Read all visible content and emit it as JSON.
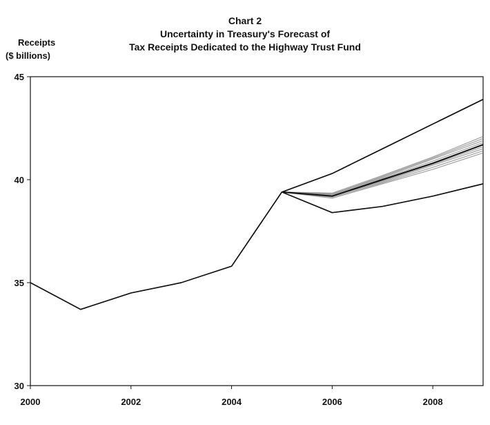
{
  "chart_data": {
    "type": "line",
    "title": "Chart 2",
    "subtitle_lines": [
      "Uncertainty in Treasury's Forecast of",
      "Tax Receipts Dedicated to the Highway Trust Fund"
    ],
    "ylabel_lines": [
      "Receipts",
      "($ billions)"
    ],
    "xlabel": "",
    "xlim": [
      2000,
      2009
    ],
    "ylim": [
      30,
      45
    ],
    "x_ticks": [
      2000,
      2002,
      2004,
      2006,
      2008
    ],
    "y_ticks": [
      30,
      35,
      40,
      45
    ],
    "grid": false,
    "legend": "none",
    "series": [
      {
        "kind": "actual",
        "x": [
          2000,
          2001,
          2002,
          2003,
          2004,
          2005
        ],
        "values": [
          35.0,
          33.7,
          34.5,
          35.0,
          35.8,
          39.4
        ]
      },
      {
        "kind": "forecast-upper",
        "x": [
          2005,
          2006,
          2007,
          2008,
          2009
        ],
        "values": [
          39.4,
          40.3,
          41.5,
          42.7,
          43.9
        ]
      },
      {
        "kind": "forecast-lower",
        "x": [
          2005,
          2006,
          2007,
          2008,
          2009
        ],
        "values": [
          39.4,
          38.4,
          38.7,
          39.2,
          39.8
        ]
      },
      {
        "kind": "forecast-central",
        "x": [
          2005,
          2006,
          2007,
          2008,
          2009
        ],
        "values": [
          39.4,
          39.2,
          40.0,
          40.8,
          41.7
        ]
      },
      {
        "kind": "forecast-path",
        "x": [
          2005,
          2006,
          2007,
          2008,
          2009
        ],
        "values": [
          39.4,
          39.3,
          40.1,
          41.0,
          41.9
        ]
      },
      {
        "kind": "forecast-path",
        "x": [
          2005,
          2006,
          2007,
          2008,
          2009
        ],
        "values": [
          39.4,
          39.2,
          39.9,
          40.7,
          41.5
        ]
      },
      {
        "kind": "forecast-path",
        "x": [
          2005,
          2006,
          2007,
          2008,
          2009
        ],
        "values": [
          39.4,
          39.25,
          40.05,
          40.9,
          41.8
        ]
      },
      {
        "kind": "forecast-path",
        "x": [
          2005,
          2006,
          2007,
          2008,
          2009
        ],
        "values": [
          39.4,
          39.15,
          39.85,
          40.6,
          41.4
        ]
      },
      {
        "kind": "forecast-path",
        "x": [
          2005,
          2006,
          2007,
          2008,
          2009
        ],
        "values": [
          39.4,
          39.35,
          40.2,
          41.1,
          42.1
        ]
      },
      {
        "kind": "forecast-path",
        "x": [
          2005,
          2006,
          2007,
          2008,
          2009
        ],
        "values": [
          39.4,
          39.1,
          39.8,
          40.5,
          41.3
        ]
      },
      {
        "kind": "forecast-path",
        "x": [
          2005,
          2006,
          2007,
          2008,
          2009
        ],
        "values": [
          39.4,
          39.3,
          40.15,
          41.05,
          42.0
        ]
      },
      {
        "kind": "forecast-path",
        "x": [
          2005,
          2006,
          2007,
          2008,
          2009
        ],
        "values": [
          39.4,
          39.2,
          39.95,
          40.75,
          41.6
        ]
      }
    ],
    "colors": {
      "line": "#111111",
      "band": "#888888",
      "axis": "#111111",
      "background": "#ffffff"
    }
  }
}
